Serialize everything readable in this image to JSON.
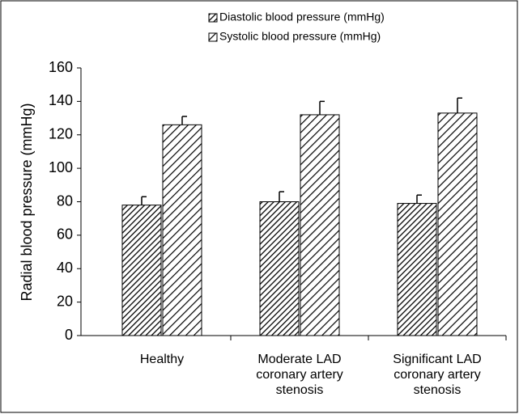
{
  "chart_data": {
    "type": "bar",
    "y_label": "Radial blood pressure (mmHg)",
    "categories": [
      "Healthy",
      "Moderate LAD coronary artery stenosis",
      "Significant LAD coronary artery stenosis"
    ],
    "series": [
      {
        "name": "Diastolic blood pressure (mmHg)",
        "color": "#000000",
        "values": [
          78,
          80,
          79
        ],
        "errors": [
          5,
          6,
          5
        ]
      },
      {
        "name": "Systolic blood pressure (mmHg)",
        "color": "#000000",
        "values": [
          126,
          132,
          133
        ],
        "errors": [
          5,
          8,
          9
        ]
      }
    ],
    "ylim": [
      0,
      160
    ],
    "yticks": [
      0,
      20,
      40,
      60,
      80,
      100,
      120,
      140,
      160
    ]
  }
}
